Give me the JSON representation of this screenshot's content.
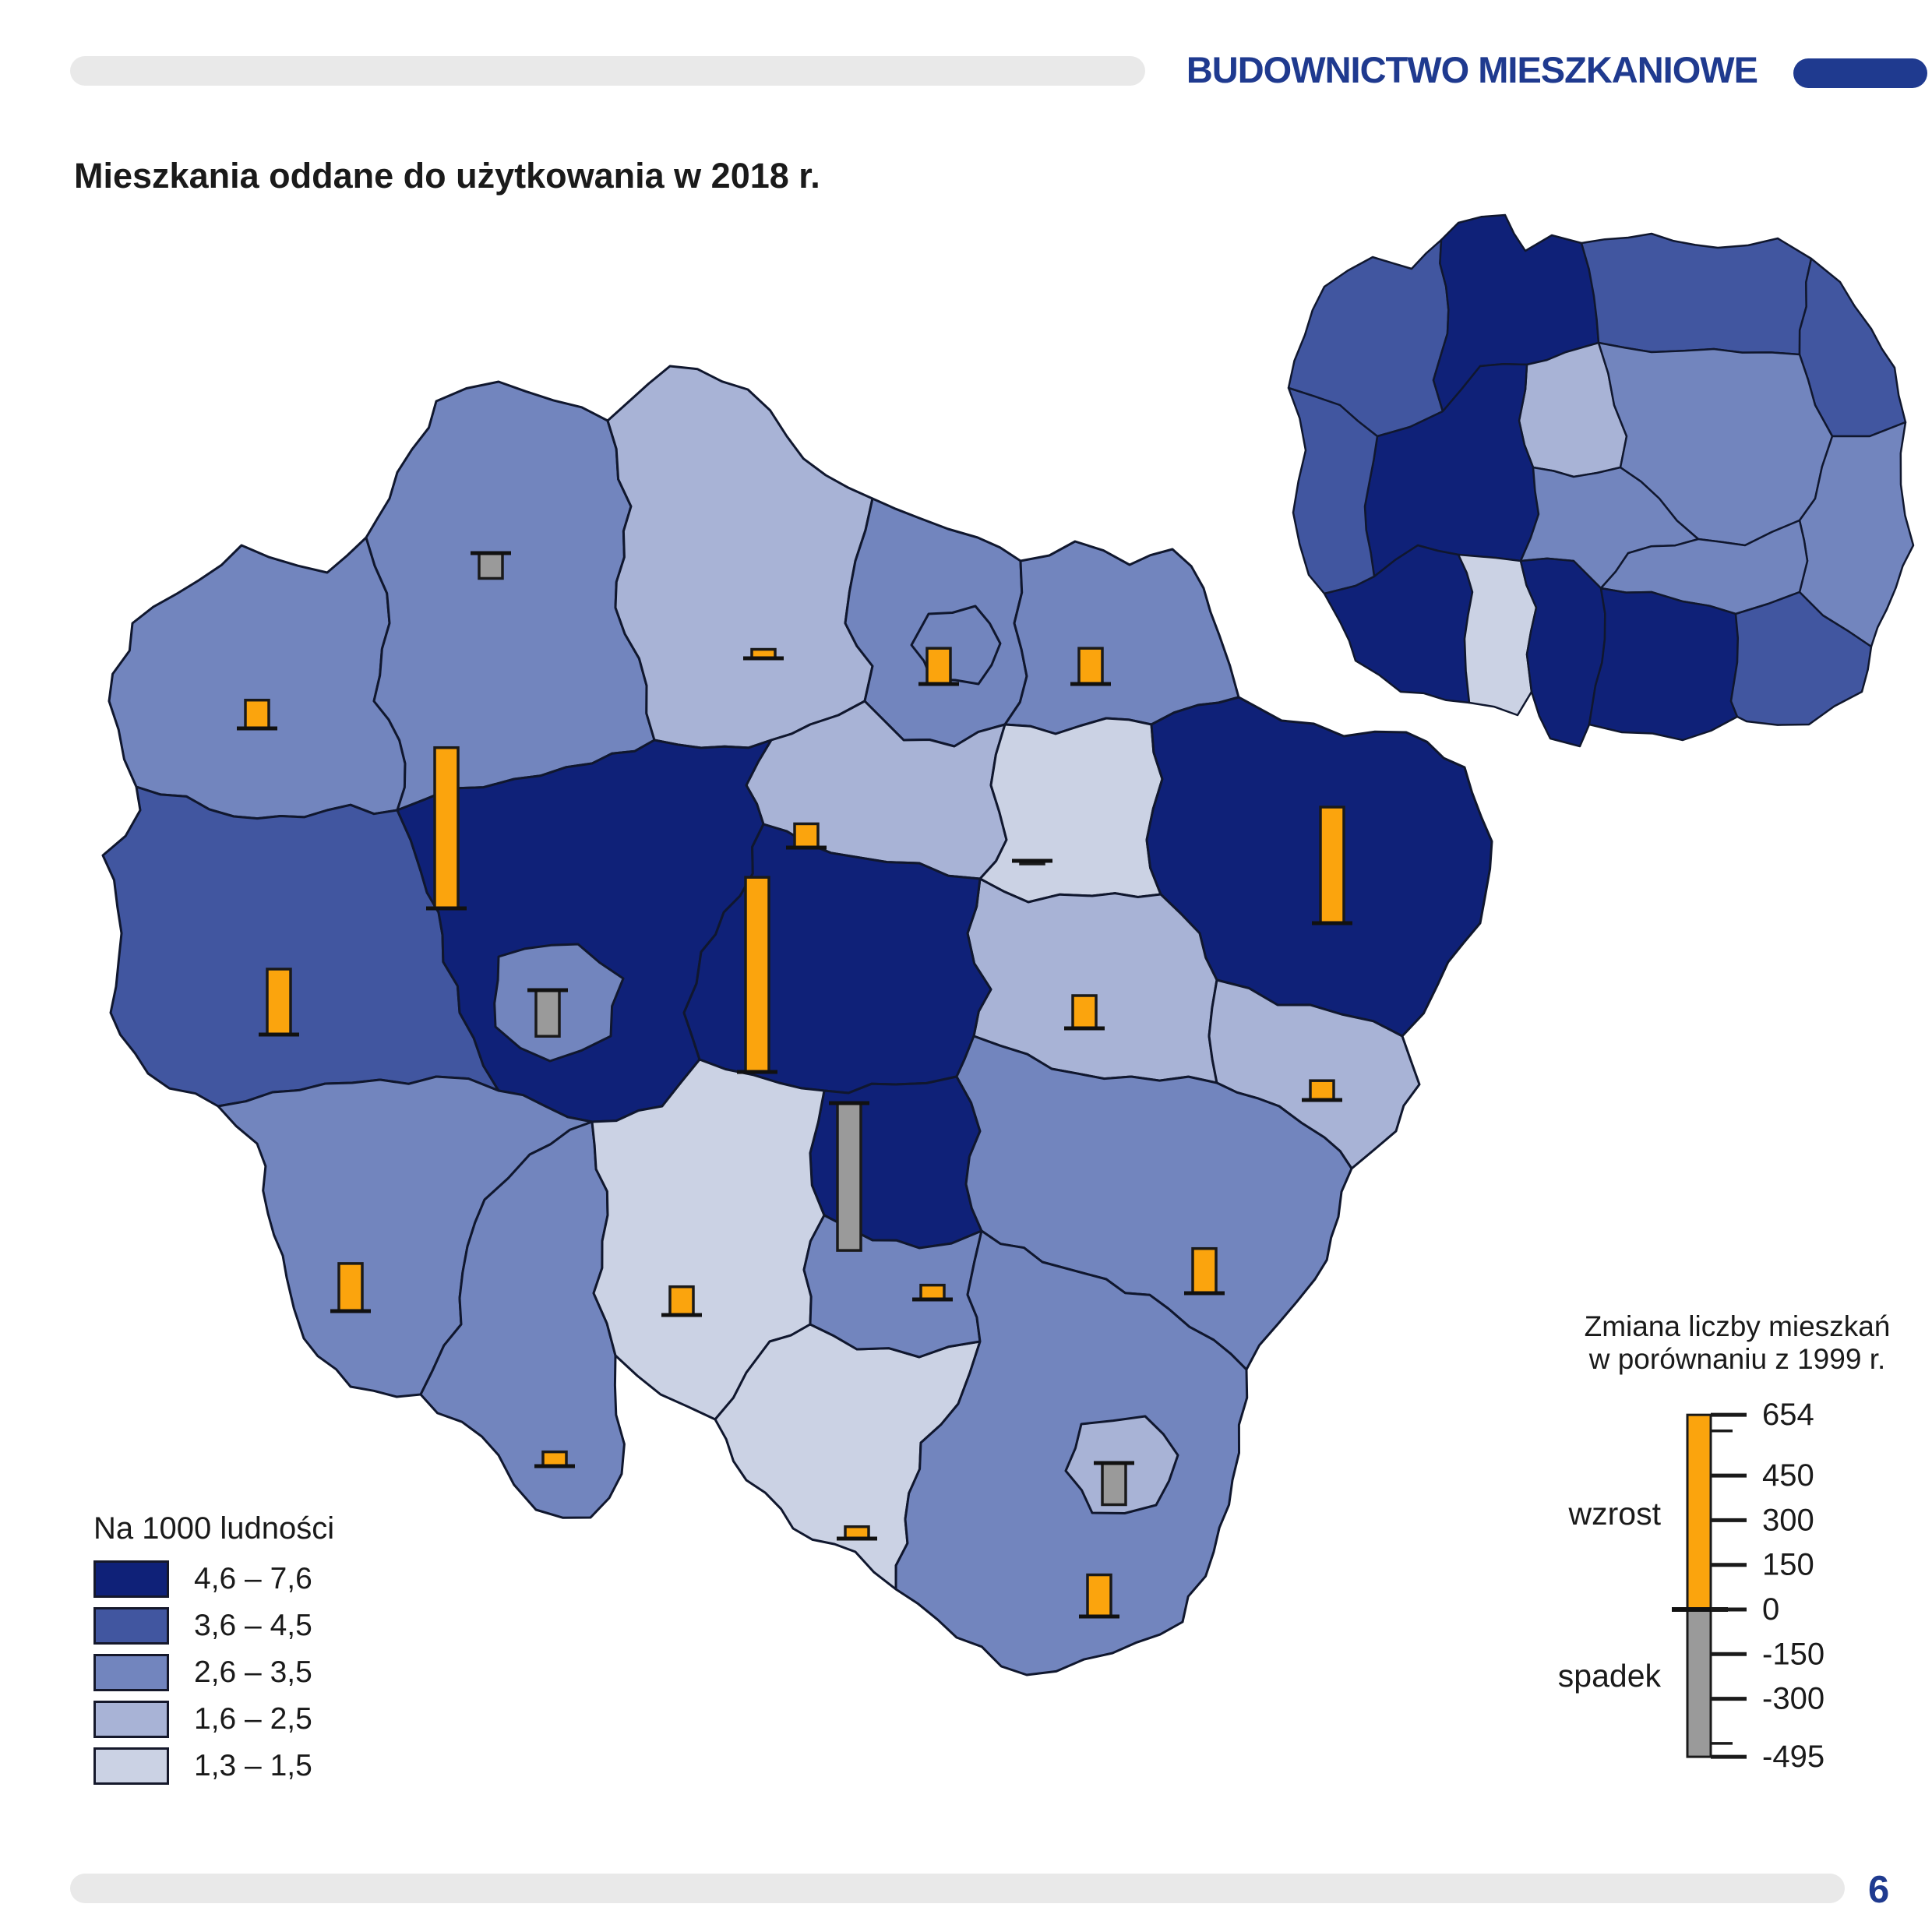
{
  "header": {
    "title": "BUDOWNICTWO MIESZKANIOWE"
  },
  "page": {
    "title": "Mieszkania oddane do użytkowania w 2018 r.",
    "number": "6"
  },
  "choropleth_legend": {
    "title": "Na 1000 ludności",
    "classes": [
      {
        "label": "4,6 – 7,6",
        "color": "#0f2178"
      },
      {
        "label": "3,6 – 4,5",
        "color": "#4156a0"
      },
      {
        "label": "2,6 – 3,5",
        "color": "#7285be"
      },
      {
        "label": "1,6 – 2,5",
        "color": "#a8b3d6"
      },
      {
        "label": "1,3 – 1,5",
        "color": "#cbd2e4"
      }
    ]
  },
  "bar_legend": {
    "title_line1": "Zmiana liczby mieszkań",
    "title_line2": "w porównaniu z 1999 r.",
    "increase_label": "wzrost",
    "decrease_label": "spadek",
    "increase_color": "#fba40d",
    "decrease_color": "#9a9a9a",
    "max": 654,
    "min": -495,
    "ticks": [
      {
        "value": 654,
        "label": "654",
        "major": true
      },
      {
        "value": 600,
        "label": "",
        "major": false
      },
      {
        "value": 450,
        "label": "450",
        "major": true
      },
      {
        "value": 300,
        "label": "300",
        "major": true
      },
      {
        "value": 150,
        "label": "150",
        "major": true
      },
      {
        "value": 0,
        "label": "0",
        "major": true
      },
      {
        "value": -150,
        "label": "-150",
        "major": true
      },
      {
        "value": -300,
        "label": "-300",
        "major": true
      },
      {
        "value": -450,
        "label": "",
        "major": false
      },
      {
        "value": -495,
        "label": "-495",
        "major": true
      }
    ]
  },
  "chart_data": {
    "type": "map-choropleth-with-bars",
    "title": "Mieszkania oddane do użytkowania w 2018 r.",
    "unit_choropleth": "na 1000 ludności",
    "unit_bars": "zmiana liczby mieszkań w porównaniu z 1999 r.",
    "class_ranges": [
      "4,6 – 7,6",
      "3,6 – 4,5",
      "2,6 – 3,5",
      "1,6 – 2,5",
      "1,3 – 1,5"
    ],
    "bar_range": [
      -495,
      654
    ]
  },
  "main_map": {
    "regions": [
      {
        "id": "r01",
        "class": 3,
        "bar": 95
      },
      {
        "id": "r02",
        "class": 3,
        "bar": -85
      },
      {
        "id": "r03",
        "class": 4,
        "bar": 30
      },
      {
        "id": "r04",
        "class": 3,
        "bar": null
      },
      {
        "id": "r05",
        "class": 3,
        "bar": 120
      },
      {
        "id": "r06",
        "class": 4,
        "bar": 80
      },
      {
        "id": "r07",
        "class": 5,
        "bar": -10
      },
      {
        "id": "r08",
        "class": 1,
        "bar": 390
      },
      {
        "id": "r09",
        "class": 4,
        "bar": 110
      },
      {
        "id": "r10",
        "class": 4,
        "bar": 65
      },
      {
        "id": "r11",
        "class": 2,
        "bar": 220
      },
      {
        "id": "r12",
        "class": 1,
        "bar": 540
      },
      {
        "id": "r13",
        "class": 1,
        "bar": 654
      },
      {
        "id": "r14",
        "class": 1,
        "bar": -495
      },
      {
        "id": "r15",
        "class": 3,
        "bar": 160
      },
      {
        "id": "r16",
        "class": 3,
        "bar": 48
      },
      {
        "id": "r17",
        "class": 5,
        "bar": 95
      },
      {
        "id": "r18",
        "class": 5,
        "bar": 40
      },
      {
        "id": "r19",
        "class": 3,
        "bar": 48
      },
      {
        "id": "r20",
        "class": 3,
        "bar": 150
      },
      {
        "id": "r21",
        "class": 3,
        "bar": 140
      },
      {
        "id": "e01",
        "class": 3,
        "bar": -155
      },
      {
        "id": "e02",
        "class": 3,
        "bar": 120
      },
      {
        "id": "e03",
        "class": 4,
        "bar": -140
      }
    ]
  },
  "inset_map": {
    "regions": [
      {
        "id": "i01",
        "class": 2
      },
      {
        "id": "i02",
        "class": 1
      },
      {
        "id": "i03",
        "class": 2
      },
      {
        "id": "i04",
        "class": 2
      },
      {
        "id": "i05",
        "class": 4
      },
      {
        "id": "i06",
        "class": 3
      },
      {
        "id": "i07",
        "class": 1
      },
      {
        "id": "i08",
        "class": 2
      },
      {
        "id": "i09",
        "class": 3
      },
      {
        "id": "i10",
        "class": 3
      },
      {
        "id": "i11",
        "class": 3
      },
      {
        "id": "i12",
        "class": 1
      },
      {
        "id": "i13",
        "class": 5
      },
      {
        "id": "i14",
        "class": 1
      },
      {
        "id": "i15",
        "class": 1
      },
      {
        "id": "i16",
        "class": 2
      }
    ]
  }
}
